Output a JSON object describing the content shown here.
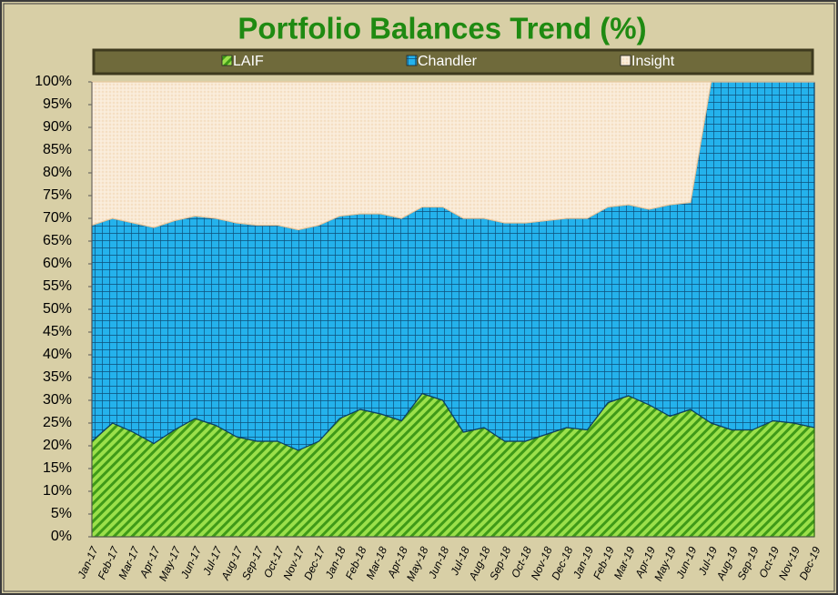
{
  "chart_data": {
    "type": "stacked-area",
    "title": "Portfolio Balances Trend (%)",
    "categories": [
      "Jan-17",
      "Feb-17",
      "Mar-17",
      "Apr-17",
      "May-17",
      "Jun-17",
      "Jul-17",
      "Aug-17",
      "Sep-17",
      "Oct-17",
      "Nov-17",
      "Dec-17",
      "Jan-18",
      "Feb-18",
      "Mar-18",
      "Apr-18",
      "May-18",
      "Jun-18",
      "Jul-18",
      "Aug-18",
      "Sep-18",
      "Oct-18",
      "Nov-18",
      "Dec-18",
      "Jan-19",
      "Feb-19",
      "Mar-19",
      "Apr-19",
      "May-19",
      "Jun-19",
      "Jul-19",
      "Aug-19",
      "Sep-19",
      "Oct-19",
      "Nov-19",
      "Dec-19"
    ],
    "series": [
      {
        "name": "LAIF",
        "color": "#74c82a",
        "values": [
          21,
          25,
          23,
          20.5,
          23.5,
          26,
          24.5,
          22,
          21,
          21,
          19,
          21,
          26,
          28,
          27,
          25.5,
          31.5,
          30,
          23,
          24,
          21,
          21,
          22.5,
          24,
          23.5,
          29.5,
          31,
          29,
          26.5,
          28,
          25,
          23.5,
          23.5,
          25.5,
          25,
          24
        ]
      },
      {
        "name": "Chandler",
        "color": "#1ea6df",
        "values": [
          47.5,
          45,
          46,
          47.5,
          46,
          44.5,
          45.5,
          47,
          47.5,
          47.5,
          48.5,
          47.5,
          44.5,
          43,
          44,
          44.5,
          41,
          42.5,
          47,
          46,
          48,
          48,
          47,
          46,
          46.5,
          43,
          42,
          43,
          46.5,
          45.5,
          75,
          76.5,
          76.5,
          74.5,
          75,
          76
        ]
      },
      {
        "name": "Insight",
        "color": "#f8e6cf",
        "values": [
          31.5,
          30,
          31,
          32,
          30.5,
          29.5,
          30,
          31,
          31.5,
          31.5,
          32.5,
          31.5,
          29.5,
          29,
          29,
          30,
          27.5,
          27.5,
          30,
          30,
          31,
          31,
          30.5,
          30,
          30,
          27.5,
          27,
          28,
          27,
          26.5,
          0,
          0,
          0,
          0,
          0,
          0
        ]
      }
    ],
    "ylim": [
      0,
      100
    ],
    "yticks": [
      {
        "value": 0,
        "label": "0%"
      },
      {
        "value": 5,
        "label": "5%"
      },
      {
        "value": 10,
        "label": "10%"
      },
      {
        "value": 15,
        "label": "15%"
      },
      {
        "value": 20,
        "label": "20%"
      },
      {
        "value": 25,
        "label": "25%"
      },
      {
        "value": 30,
        "label": "30%"
      },
      {
        "value": 35,
        "label": "35%"
      },
      {
        "value": 40,
        "label": "40%"
      },
      {
        "value": 45,
        "label": "45%"
      },
      {
        "value": 50,
        "label": "50%"
      },
      {
        "value": 55,
        "label": "55%"
      },
      {
        "value": 60,
        "label": "60%"
      },
      {
        "value": 65,
        "label": "65%"
      },
      {
        "value": 70,
        "label": "70%"
      },
      {
        "value": 75,
        "label": "75%"
      },
      {
        "value": 80,
        "label": "80%"
      },
      {
        "value": 85,
        "label": "85%"
      },
      {
        "value": 90,
        "label": "90%"
      },
      {
        "value": 95,
        "label": "95%"
      },
      {
        "value": 100,
        "label": "100%"
      }
    ]
  }
}
